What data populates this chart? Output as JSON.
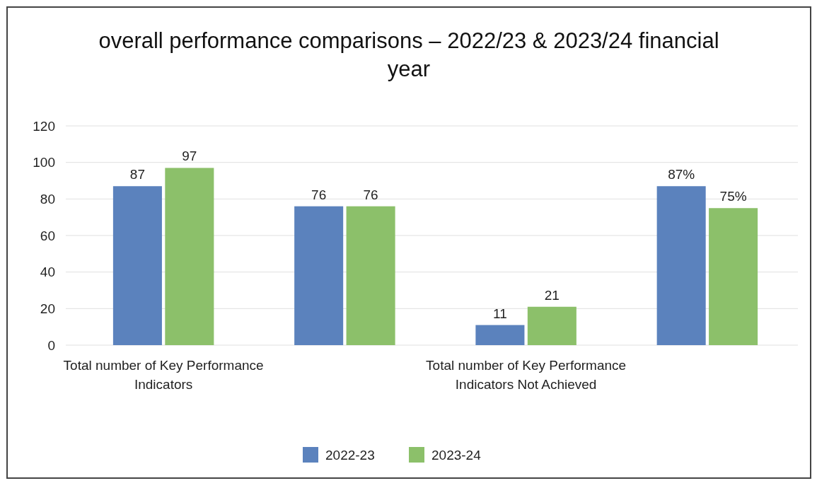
{
  "chart_data": {
    "type": "bar",
    "title": "overall performance comparisons – 2022/23 & 2023/24 financial year",
    "categories": [
      "Total number of Key Performance Indicators",
      null,
      "Total number of Key Performance Indicators Not Achieved",
      null
    ],
    "series": [
      {
        "name": "2022-23",
        "color": "#5b82bd",
        "values": [
          87,
          76,
          11,
          87
        ],
        "value_labels": [
          "87",
          "76",
          "11",
          "87%"
        ]
      },
      {
        "name": "2023-24",
        "color": "#8cc06a",
        "values": [
          97,
          76,
          21,
          75
        ],
        "value_labels": [
          "97",
          "76",
          "21",
          "75%"
        ]
      }
    ],
    "ylim": [
      0,
      120
    ],
    "yticks": [
      0,
      20,
      40,
      60,
      80,
      100,
      120
    ],
    "grid": "y",
    "legend": "bottom"
  }
}
